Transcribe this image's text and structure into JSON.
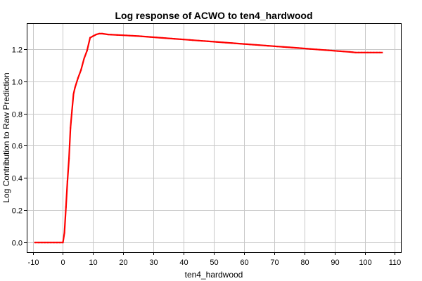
{
  "chart_data": {
    "type": "line",
    "title": "Log response of ACWO to ten4_hardwood",
    "xlabel": "ten4_hardwood",
    "ylabel": "Log Contribution to Raw Prediction",
    "xlim": [
      -12,
      112
    ],
    "ylim": [
      -0.06,
      1.36
    ],
    "x_ticks": [
      -10,
      0,
      10,
      20,
      30,
      40,
      50,
      60,
      70,
      80,
      90,
      100,
      110
    ],
    "y_ticks": [
      0.0,
      0.2,
      0.4,
      0.6,
      0.8,
      1.0,
      1.2
    ],
    "y_tick_labels": [
      "0.0",
      "0.2",
      "0.4",
      "0.6",
      "0.8",
      "1.0",
      "1.2"
    ],
    "grid": true,
    "series": [
      {
        "color": "#ff0000",
        "x": [
          -9.3,
          -8,
          -6,
          -4,
          -2,
          0,
          0.5,
          1,
          1.5,
          2,
          2.5,
          3,
          3.5,
          4,
          5,
          6,
          7,
          8,
          9,
          10,
          11,
          12,
          13,
          15,
          20,
          25,
          30,
          35,
          40,
          45,
          50,
          55,
          60,
          65,
          70,
          75,
          80,
          85,
          90,
          95,
          97,
          100,
          103,
          106
        ],
        "y": [
          0.0,
          0.0,
          0.0,
          0.0,
          0.0,
          0.0,
          0.06,
          0.22,
          0.38,
          0.52,
          0.71,
          0.82,
          0.92,
          0.96,
          1.02,
          1.07,
          1.14,
          1.19,
          1.27,
          1.28,
          1.29,
          1.295,
          1.295,
          1.29,
          1.285,
          1.28,
          1.273,
          1.266,
          1.259,
          1.252,
          1.245,
          1.238,
          1.231,
          1.224,
          1.217,
          1.21,
          1.203,
          1.196,
          1.189,
          1.182,
          1.178,
          1.178,
          1.178,
          1.178
        ]
      }
    ]
  }
}
